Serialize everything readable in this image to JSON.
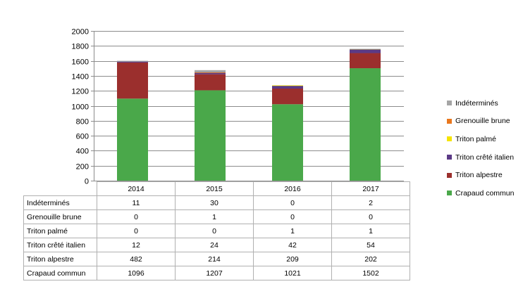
{
  "chart_data": {
    "type": "bar",
    "stacked": true,
    "categories": [
      "2014",
      "2015",
      "2016",
      "2017"
    ],
    "ylim": [
      0,
      2000
    ],
    "yticks": [
      "0",
      "200",
      "400",
      "600",
      "800",
      "1000",
      "1200",
      "1400",
      "1600",
      "1800",
      "2000"
    ],
    "grid": true,
    "legend_position": "right",
    "series": [
      {
        "name": "Crapaud commun",
        "color": "#4aa84a",
        "values": [
          1096,
          1207,
          1021,
          1502
        ]
      },
      {
        "name": "Triton alpestre",
        "color": "#9b2f2d",
        "values": [
          482,
          214,
          209,
          202
        ]
      },
      {
        "name": "Triton crêté italien",
        "color": "#5b3a86",
        "values": [
          12,
          24,
          42,
          54
        ]
      },
      {
        "name": "Triton palmé",
        "color": "#f5e400",
        "values": [
          0,
          0,
          1,
          1
        ]
      },
      {
        "name": "Grenouille brune",
        "color": "#e9771d",
        "values": [
          0,
          1,
          0,
          0
        ]
      },
      {
        "name": "Indéterminés",
        "color": "#a5a5a5",
        "values": [
          11,
          30,
          0,
          2
        ]
      }
    ],
    "table_rows": [
      {
        "label": "Indéterminés",
        "values": [
          "11",
          "30",
          "0",
          "2"
        ]
      },
      {
        "label": "Grenouille brune",
        "values": [
          "0",
          "1",
          "0",
          "0"
        ]
      },
      {
        "label": "Triton palmé",
        "values": [
          "0",
          "0",
          "1",
          "1"
        ]
      },
      {
        "label": "Triton crêté italien",
        "values": [
          "12",
          "24",
          "42",
          "54"
        ]
      },
      {
        "label": "Triton alpestre",
        "values": [
          "482",
          "214",
          "209",
          "202"
        ]
      },
      {
        "label": "Crapaud commun",
        "values": [
          "1096",
          "1207",
          "1021",
          "1502"
        ]
      }
    ],
    "legend_order": [
      "Indéterminés",
      "Grenouille brune",
      "Triton palmé",
      "Triton crêté italien",
      "Triton alpestre",
      "Crapaud commun"
    ]
  }
}
